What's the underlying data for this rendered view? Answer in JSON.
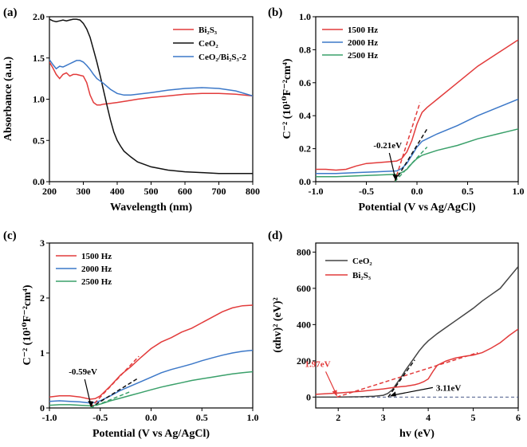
{
  "figure": {
    "panel_labels": [
      "(a)",
      "(b)",
      "(c)",
      "(d)"
    ]
  },
  "chart_data": [
    {
      "panel": "(a)",
      "type": "line",
      "xlabel": "Wavelength (nm)",
      "ylabel": "Absorbance (a.u.)",
      "xlim": [
        200,
        800
      ],
      "ylim": [
        0,
        2.0
      ],
      "xticks": [
        200,
        300,
        400,
        500,
        600,
        700,
        800
      ],
      "yticks": [
        0.0,
        0.5,
        1.0,
        1.5,
        2.0
      ],
      "xtick_labels": [
        "200",
        "300",
        "400",
        "500",
        "600",
        "700",
        "800"
      ],
      "ytick_labels": [
        "0.0",
        "0.5",
        "1.0",
        "1.5",
        "2.0"
      ],
      "legend_position": "top-right",
      "legend_labels": [
        "Bi₂S₃",
        "CeO₂",
        "CeO₂/Bi₂S₃-2"
      ],
      "series": [
        {
          "name": "Bi2S3",
          "color": "#e23b3b",
          "x": [
            200,
            210,
            220,
            230,
            240,
            250,
            260,
            270,
            280,
            290,
            300,
            310,
            320,
            330,
            340,
            350,
            360,
            380,
            400,
            430,
            460,
            500,
            550,
            600,
            650,
            700,
            750,
            800
          ],
          "y": [
            1.45,
            1.38,
            1.3,
            1.25,
            1.3,
            1.32,
            1.28,
            1.3,
            1.3,
            1.29,
            1.28,
            1.2,
            1.05,
            0.96,
            0.93,
            0.93,
            0.94,
            0.95,
            0.96,
            0.98,
            1.0,
            1.02,
            1.04,
            1.06,
            1.07,
            1.07,
            1.06,
            1.04
          ]
        },
        {
          "name": "CeO2",
          "color": "#111111",
          "x": [
            200,
            210,
            220,
            230,
            240,
            250,
            260,
            270,
            280,
            290,
            300,
            310,
            320,
            330,
            340,
            350,
            360,
            370,
            380,
            390,
            400,
            410,
            420,
            440,
            460,
            500,
            550,
            600,
            650,
            700,
            750,
            800
          ],
          "y": [
            1.97,
            1.95,
            1.94,
            1.95,
            1.96,
            1.95,
            1.96,
            1.97,
            1.97,
            1.96,
            1.92,
            1.85,
            1.75,
            1.6,
            1.45,
            1.28,
            1.1,
            0.92,
            0.75,
            0.6,
            0.5,
            0.43,
            0.37,
            0.3,
            0.24,
            0.18,
            0.14,
            0.12,
            0.11,
            0.1,
            0.1,
            0.1
          ]
        },
        {
          "name": "CeO2/Bi2S3-2",
          "color": "#3c78c8",
          "x": [
            200,
            210,
            220,
            230,
            240,
            250,
            260,
            270,
            280,
            290,
            300,
            310,
            320,
            330,
            340,
            350,
            360,
            380,
            400,
            420,
            440,
            460,
            500,
            550,
            600,
            650,
            700,
            750,
            800
          ],
          "y": [
            1.48,
            1.42,
            1.37,
            1.4,
            1.39,
            1.41,
            1.43,
            1.45,
            1.47,
            1.47,
            1.45,
            1.41,
            1.36,
            1.3,
            1.25,
            1.22,
            1.19,
            1.12,
            1.07,
            1.05,
            1.05,
            1.06,
            1.08,
            1.11,
            1.13,
            1.14,
            1.13,
            1.1,
            1.04
          ]
        }
      ]
    },
    {
      "panel": "(b)",
      "type": "line",
      "xlabel": "Potential (V vs Ag/AgCl)",
      "ylabel": "C⁻² (10¹⁰F⁻²cm⁴)",
      "xlim": [
        -1.0,
        1.0
      ],
      "ylim": [
        0,
        1.0
      ],
      "xticks": [
        -1.0,
        -0.5,
        0.0,
        0.5,
        1.0
      ],
      "yticks": [
        0.0,
        0.2,
        0.4,
        0.6,
        0.8,
        1.0
      ],
      "xtick_labels": [
        "-1.0",
        "-0.5",
        "0.0",
        "0.5",
        "1.0"
      ],
      "ytick_labels": [
        "0.0",
        "0.2",
        "0.4",
        "0.6",
        "0.8",
        "1.0"
      ],
      "legend_position": "top-left",
      "legend_labels": [
        "1500 Hz",
        "2000 Hz",
        "2500 Hz"
      ],
      "annotation": {
        "text": "-0.21eV",
        "x": -0.21,
        "y": 0.0
      },
      "series": [
        {
          "name": "1500 Hz",
          "color": "#e23b3b",
          "x": [
            -1.0,
            -0.9,
            -0.8,
            -0.7,
            -0.6,
            -0.5,
            -0.4,
            -0.3,
            -0.2,
            -0.15,
            -0.1,
            -0.05,
            0.0,
            0.05,
            0.1,
            0.2,
            0.4,
            0.6,
            0.8,
            1.0
          ],
          "y": [
            0.075,
            0.075,
            0.07,
            0.075,
            0.095,
            0.11,
            0.115,
            0.12,
            0.125,
            0.14,
            0.18,
            0.25,
            0.35,
            0.42,
            0.45,
            0.5,
            0.6,
            0.7,
            0.78,
            0.86
          ]
        },
        {
          "name": "2000 Hz",
          "color": "#3c78c8",
          "x": [
            -1.0,
            -0.8,
            -0.6,
            -0.4,
            -0.2,
            -0.15,
            -0.1,
            -0.05,
            0.0,
            0.05,
            0.1,
            0.2,
            0.4,
            0.6,
            0.8,
            1.0
          ],
          "y": [
            0.05,
            0.05,
            0.055,
            0.06,
            0.065,
            0.08,
            0.11,
            0.16,
            0.21,
            0.245,
            0.26,
            0.29,
            0.34,
            0.4,
            0.45,
            0.5
          ]
        },
        {
          "name": "2500 Hz",
          "color": "#3aa06a",
          "x": [
            -1.0,
            -0.8,
            -0.6,
            -0.4,
            -0.2,
            -0.15,
            -0.1,
            -0.05,
            0.0,
            0.05,
            0.1,
            0.2,
            0.4,
            0.6,
            0.8,
            1.0
          ],
          "y": [
            0.03,
            0.03,
            0.035,
            0.04,
            0.045,
            0.055,
            0.075,
            0.11,
            0.14,
            0.16,
            0.17,
            0.19,
            0.22,
            0.26,
            0.29,
            0.32
          ]
        }
      ],
      "fits": [
        {
          "color": "#e23b3b",
          "x": [
            -0.22,
            0.03
          ],
          "y": [
            0.0,
            0.48
          ]
        },
        {
          "color": "#111111",
          "x": [
            -0.22,
            0.1
          ],
          "y": [
            0.0,
            0.32
          ]
        },
        {
          "color": "#3aa06a",
          "x": [
            -0.22,
            0.1
          ],
          "y": [
            0.0,
            0.21
          ]
        }
      ]
    },
    {
      "panel": "(c)",
      "type": "line",
      "xlabel": "Potential (V vs Ag/AgCl)",
      "ylabel": "C⁻² (10¹⁰F⁻²cm⁴)",
      "xlim": [
        -1.0,
        1.0
      ],
      "ylim": [
        0,
        3
      ],
      "xticks": [
        -1.0,
        -0.5,
        0.0,
        0.5,
        1.0
      ],
      "yticks": [
        0,
        1,
        2,
        3
      ],
      "xtick_labels": [
        "-1.0",
        "-0.5",
        "0.0",
        "0.5",
        "1.0"
      ],
      "ytick_labels": [
        "0",
        "1",
        "2",
        "3"
      ],
      "legend_position": "top-left",
      "legend_labels": [
        "1500 Hz",
        "2000 Hz",
        "2500 Hz"
      ],
      "annotation": {
        "text": "-0.59eV",
        "x": -0.59,
        "y": 0.0
      },
      "series": [
        {
          "name": "1500 Hz",
          "color": "#e23b3b",
          "x": [
            -1.0,
            -0.9,
            -0.8,
            -0.7,
            -0.6,
            -0.55,
            -0.5,
            -0.4,
            -0.3,
            -0.2,
            -0.1,
            0.0,
            0.1,
            0.2,
            0.3,
            0.4,
            0.5,
            0.6,
            0.7,
            0.8,
            0.9,
            1.0
          ],
          "y": [
            0.2,
            0.22,
            0.22,
            0.2,
            0.16,
            0.17,
            0.22,
            0.4,
            0.6,
            0.75,
            0.92,
            1.08,
            1.2,
            1.28,
            1.38,
            1.45,
            1.55,
            1.65,
            1.75,
            1.82,
            1.86,
            1.87
          ]
        },
        {
          "name": "2000 Hz",
          "color": "#3c78c8",
          "x": [
            -1.0,
            -0.9,
            -0.8,
            -0.7,
            -0.6,
            -0.55,
            -0.5,
            -0.4,
            -0.3,
            -0.2,
            -0.1,
            0.0,
            0.1,
            0.2,
            0.3,
            0.4,
            0.5,
            0.6,
            0.7,
            0.8,
            0.9,
            1.0
          ],
          "y": [
            0.12,
            0.13,
            0.12,
            0.11,
            0.09,
            0.1,
            0.13,
            0.22,
            0.32,
            0.4,
            0.48,
            0.56,
            0.64,
            0.7,
            0.75,
            0.8,
            0.86,
            0.91,
            0.96,
            1.0,
            1.03,
            1.05
          ]
        },
        {
          "name": "2500 Hz",
          "color": "#3aa06a",
          "x": [
            -1.0,
            -0.9,
            -0.8,
            -0.7,
            -0.6,
            -0.55,
            -0.5,
            -0.4,
            -0.3,
            -0.2,
            -0.1,
            0.0,
            0.1,
            0.2,
            0.3,
            0.4,
            0.5,
            0.6,
            0.7,
            0.8,
            0.9,
            1.0
          ],
          "y": [
            0.05,
            0.06,
            0.06,
            0.05,
            0.04,
            0.05,
            0.07,
            0.13,
            0.18,
            0.23,
            0.28,
            0.33,
            0.38,
            0.42,
            0.46,
            0.5,
            0.53,
            0.56,
            0.59,
            0.62,
            0.64,
            0.66
          ]
        }
      ],
      "fits": [
        {
          "color": "#e23b3b",
          "x": [
            -0.6,
            -0.12
          ],
          "y": [
            0.0,
            0.94
          ]
        },
        {
          "color": "#111111",
          "x": [
            -0.6,
            -0.12
          ],
          "y": [
            0.0,
            0.55
          ]
        },
        {
          "color": "#3aa06a",
          "x": [
            -0.6,
            -0.2
          ],
          "y": [
            0.0,
            0.3
          ]
        }
      ]
    },
    {
      "panel": "(d)",
      "type": "line",
      "xlabel": "hv (eV)",
      "ylabel": "(αhv)² (eV)²",
      "xlim": [
        1.5,
        6.0
      ],
      "ylim": [
        -60,
        850
      ],
      "xticks": [
        2,
        3,
        4,
        5,
        6
      ],
      "yticks": [
        0,
        200,
        400,
        600,
        800
      ],
      "xtick_labels": [
        "2",
        "3",
        "4",
        "5",
        "6"
      ],
      "ytick_labels": [
        "0",
        "200",
        "400",
        "600",
        "800"
      ],
      "legend_position": "top-left",
      "legend_labels": [
        "CeO₂",
        "Bi₂S₃"
      ],
      "annotations": [
        {
          "text": "1.97eV",
          "color": "#e23b3b",
          "x": 1.97,
          "y": 0
        },
        {
          "text": "3.11eV",
          "color": "#111111",
          "x": 3.11,
          "y": 0
        }
      ],
      "baseline": {
        "y": 0,
        "color": "#4a5a8a"
      },
      "series": [
        {
          "name": "CeO2",
          "color": "#444444",
          "x": [
            1.5,
            2.0,
            2.5,
            2.8,
            3.0,
            3.1,
            3.2,
            3.3,
            3.4,
            3.5,
            3.6,
            3.7,
            3.8,
            3.9,
            4.0,
            4.2,
            4.4,
            4.6,
            4.8,
            5.0,
            5.2,
            5.4,
            5.6,
            5.8,
            6.0
          ],
          "y": [
            0,
            0,
            2,
            5,
            10,
            20,
            40,
            75,
            110,
            150,
            185,
            220,
            255,
            285,
            310,
            350,
            385,
            420,
            455,
            490,
            530,
            565,
            600,
            660,
            720
          ]
        },
        {
          "name": "Bi2S3",
          "color": "#e23b3b",
          "x": [
            1.5,
            2.0,
            2.5,
            3.0,
            3.3,
            3.5,
            3.7,
            3.8,
            3.9,
            4.0,
            4.1,
            4.2,
            4.4,
            4.6,
            4.8,
            5.0,
            5.2,
            5.4,
            5.6,
            5.8,
            6.0
          ],
          "y": [
            15,
            22,
            32,
            45,
            55,
            60,
            68,
            75,
            85,
            100,
            140,
            175,
            200,
            215,
            225,
            232,
            245,
            270,
            300,
            340,
            375
          ]
        }
      ],
      "fits": [
        {
          "color": "#e23b3b",
          "x": [
            1.97,
            5.1
          ],
          "y": [
            0,
            245
          ],
          "dashed": true
        },
        {
          "color": "#111111",
          "x": [
            3.11,
            3.7
          ],
          "y": [
            0,
            205
          ],
          "dashed": true
        }
      ]
    }
  ]
}
